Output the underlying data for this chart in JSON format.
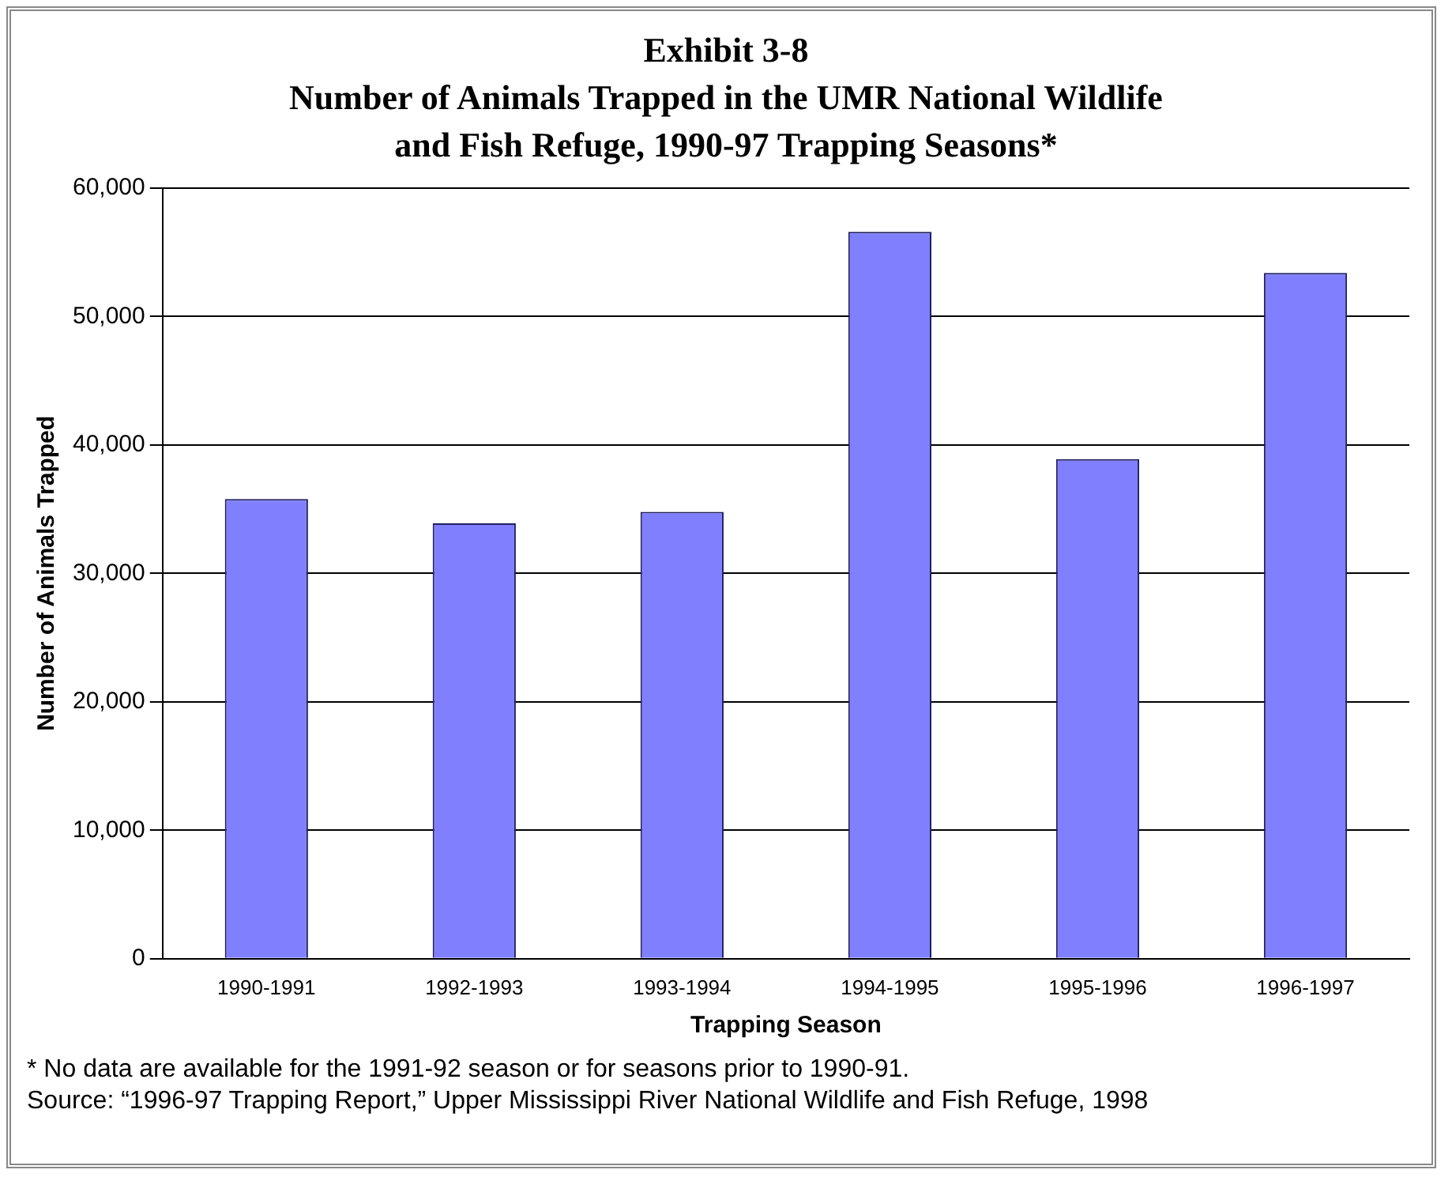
{
  "chart_data": {
    "type": "bar",
    "title": "Exhibit 3-8\nNumber of Animals Trapped in the UMR National Wildlife\nand Fish Refuge, 1990-97 Trapping Seasons*",
    "xlabel": "Trapping Season",
    "ylabel": "Number of Animals Trapped",
    "categories": [
      "1990-1991",
      "1992-1993",
      "1993-1994",
      "1994-1995",
      "1995-1996",
      "1996-1997"
    ],
    "values": [
      35800,
      33900,
      34800,
      56600,
      38900,
      53400
    ],
    "color": "#8080ff",
    "ylim": [
      0,
      60000
    ],
    "yticks": [
      {
        "value": 0,
        "label": "0"
      },
      {
        "value": 10000,
        "label": "10,000"
      },
      {
        "value": 20000,
        "label": "20,000"
      },
      {
        "value": 30000,
        "label": "30,000"
      },
      {
        "value": 40000,
        "label": "40,000"
      },
      {
        "value": 50000,
        "label": "50,000"
      },
      {
        "value": 60000,
        "label": "60,000"
      }
    ],
    "grid": "y",
    "legend": false,
    "annotations": [
      "* No data are available for the 1991-92 season or for seasons prior to 1990-91.",
      "Source: “1996-97 Trapping Report,” Upper Mississippi River National Wildlife and Fish Refuge, 1998"
    ]
  }
}
